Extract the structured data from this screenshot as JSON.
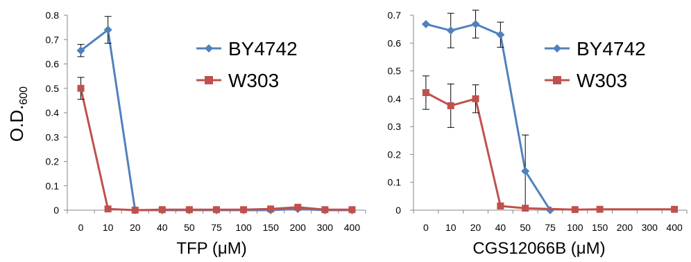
{
  "chart_data": [
    {
      "type": "line",
      "title": "",
      "xlabel": "TFP (μM)",
      "ylabel_main": "O.D.",
      "ylabel_sub": "600",
      "categories": [
        "0",
        "10",
        "20",
        "40",
        "50",
        "75",
        "100",
        "150",
        "200",
        "300",
        "400"
      ],
      "yticks": [
        "0",
        "0.1",
        "0.2",
        "0.3",
        "0.4",
        "0.5",
        "0.6",
        "0.7",
        "0.8"
      ],
      "ylim": [
        0,
        0.8
      ],
      "legend_position": "top-right",
      "grid": false,
      "series": [
        {
          "name": "BY4742",
          "color": "#4f81bd",
          "marker": "diamond",
          "values": [
            0.655,
            0.74,
            0.0,
            0.0,
            0.0,
            0.0,
            0.0,
            0.0,
            0.005,
            0.0,
            0.0
          ],
          "errors": [
            0.025,
            0.055,
            0,
            0,
            0,
            0,
            0,
            0,
            0,
            0,
            0
          ]
        },
        {
          "name": "W303",
          "color": "#c0504d",
          "marker": "square",
          "values": [
            0.5,
            0.005,
            0.0,
            0.002,
            0.002,
            0.002,
            0.002,
            0.005,
            0.012,
            0.002,
            0.002
          ],
          "errors": [
            0.045,
            0,
            0,
            0,
            0,
            0,
            0,
            0,
            0,
            0,
            0
          ]
        }
      ]
    },
    {
      "type": "line",
      "title": "",
      "xlabel": "CGS12066B (μM)",
      "categories": [
        "0",
        "10",
        "20",
        "40",
        "50",
        "75",
        "100",
        "150",
        "200",
        "300",
        "400"
      ],
      "yticks": [
        "0",
        "0.1",
        "0.2",
        "0.3",
        "0.4",
        "0.5",
        "0.6",
        "0.7"
      ],
      "ylim": [
        0,
        0.7
      ],
      "legend_position": "top-right",
      "grid": false,
      "series": [
        {
          "name": "BY4742",
          "color": "#4f81bd",
          "marker": "diamond",
          "points": [
            [
              0,
              0.668
            ],
            [
              1,
              0.645
            ],
            [
              2,
              0.668
            ],
            [
              3,
              0.63
            ],
            [
              4,
              0.14
            ],
            [
              5,
              0.0
            ]
          ],
          "errors": [
            0,
            0.062,
            0.05,
            0.045,
            0.13,
            0
          ]
        },
        {
          "name": "W303",
          "color": "#c0504d",
          "marker": "square",
          "points": [
            [
              0,
              0.422
            ],
            [
              1,
              0.375
            ],
            [
              2,
              0.4
            ],
            [
              3,
              0.015
            ],
            [
              4,
              0.007
            ],
            [
              6,
              0.002
            ],
            [
              7,
              0.003
            ],
            [
              10,
              0.003
            ]
          ],
          "errors": [
            0.06,
            0.078,
            0.05,
            0,
            0,
            0,
            0,
            0
          ]
        }
      ]
    }
  ]
}
